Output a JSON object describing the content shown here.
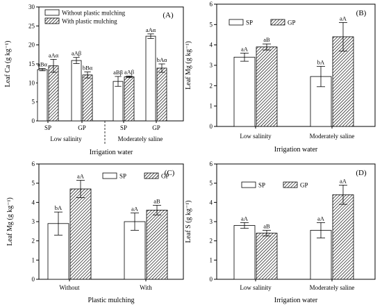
{
  "colors": {
    "open_fill": "#ffffff",
    "hatch_fill": "#000000",
    "stroke": "#000000"
  },
  "chart_data": [
    {
      "id": "A",
      "type": "bar",
      "panel_label": "(A)",
      "ylabel": "Leaf Ca (g kg⁻¹)",
      "xlabel": "Irrigation water",
      "ylim": [
        0,
        30
      ],
      "yticks": [
        0,
        5,
        10,
        15,
        20,
        25,
        30
      ],
      "categories": [
        "SP",
        "GP",
        "SP",
        "GP"
      ],
      "groups": [
        "Low salinity",
        "Moderately saline"
      ],
      "legend_position": "top-left",
      "series": [
        {
          "name": "Without plastic mulching",
          "pattern": "open",
          "values": [
            13.5,
            15.9,
            10.4,
            22.3
          ],
          "errors": [
            0.3,
            0.8,
            1.3,
            0.6
          ],
          "labels": [
            "aBα",
            "aAβ",
            "aBβ",
            "aAα"
          ]
        },
        {
          "name": "With plastic mulching",
          "pattern": "hatch",
          "values": [
            14.5,
            12.1,
            11.6,
            13.9
          ],
          "errors": [
            1.7,
            0.8,
            0.2,
            1.1
          ],
          "labels": [
            "aAα",
            "bBα",
            "aAβ",
            "bAα"
          ]
        }
      ]
    },
    {
      "id": "B",
      "type": "bar",
      "panel_label": "(B)",
      "ylabel": "Leaf Mg (g kg⁻¹)",
      "xlabel": "Irrigation water",
      "ylim": [
        0,
        6
      ],
      "yticks": [
        0,
        1,
        2,
        3,
        4,
        5,
        6
      ],
      "categories": [
        "Low salinity",
        "Moderately saline"
      ],
      "legend_position": "top-left",
      "series": [
        {
          "name": "SP",
          "pattern": "open",
          "values": [
            3.4,
            2.45
          ],
          "errors": [
            0.2,
            0.5
          ],
          "labels": [
            "aA",
            "bA"
          ]
        },
        {
          "name": "GP",
          "pattern": "hatch",
          "values": [
            3.9,
            4.4
          ],
          "errors": [
            0.15,
            0.7
          ],
          "labels": [
            "aB",
            "aA"
          ]
        }
      ]
    },
    {
      "id": "C",
      "type": "bar",
      "panel_label": "(C)",
      "ylabel": "Leaf Mg (g kg⁻¹)",
      "xlabel": "Plastic mulching",
      "ylim": [
        0,
        6
      ],
      "yticks": [
        0,
        1,
        2,
        3,
        4,
        5,
        6
      ],
      "categories": [
        "Without",
        "With"
      ],
      "legend_position": "top-center",
      "series": [
        {
          "name": "SP",
          "pattern": "open",
          "values": [
            2.9,
            3.0
          ],
          "errors": [
            0.6,
            0.45
          ],
          "labels": [
            "bA",
            "aA"
          ]
        },
        {
          "name": "GP",
          "pattern": "hatch",
          "values": [
            4.7,
            3.6
          ],
          "errors": [
            0.45,
            0.25
          ],
          "labels": [
            "aA",
            "aB"
          ]
        }
      ]
    },
    {
      "id": "D",
      "type": "bar",
      "panel_label": "(D)",
      "ylabel": "Leaf S (g kg⁻¹)",
      "xlabel": "Irrigation water",
      "ylim": [
        0,
        6
      ],
      "yticks": [
        0,
        1,
        2,
        3,
        4,
        5,
        6
      ],
      "categories": [
        "Low salinity",
        "Moderately saline"
      ],
      "legend_position": "top-left",
      "series": [
        {
          "name": "SP",
          "pattern": "open",
          "values": [
            2.8,
            2.55
          ],
          "errors": [
            0.15,
            0.4
          ],
          "labels": [
            "aA",
            "aA"
          ]
        },
        {
          "name": "GP",
          "pattern": "hatch",
          "values": [
            2.4,
            4.4
          ],
          "errors": [
            0.15,
            0.5
          ],
          "labels": [
            "aB",
            "aA"
          ]
        }
      ]
    }
  ]
}
